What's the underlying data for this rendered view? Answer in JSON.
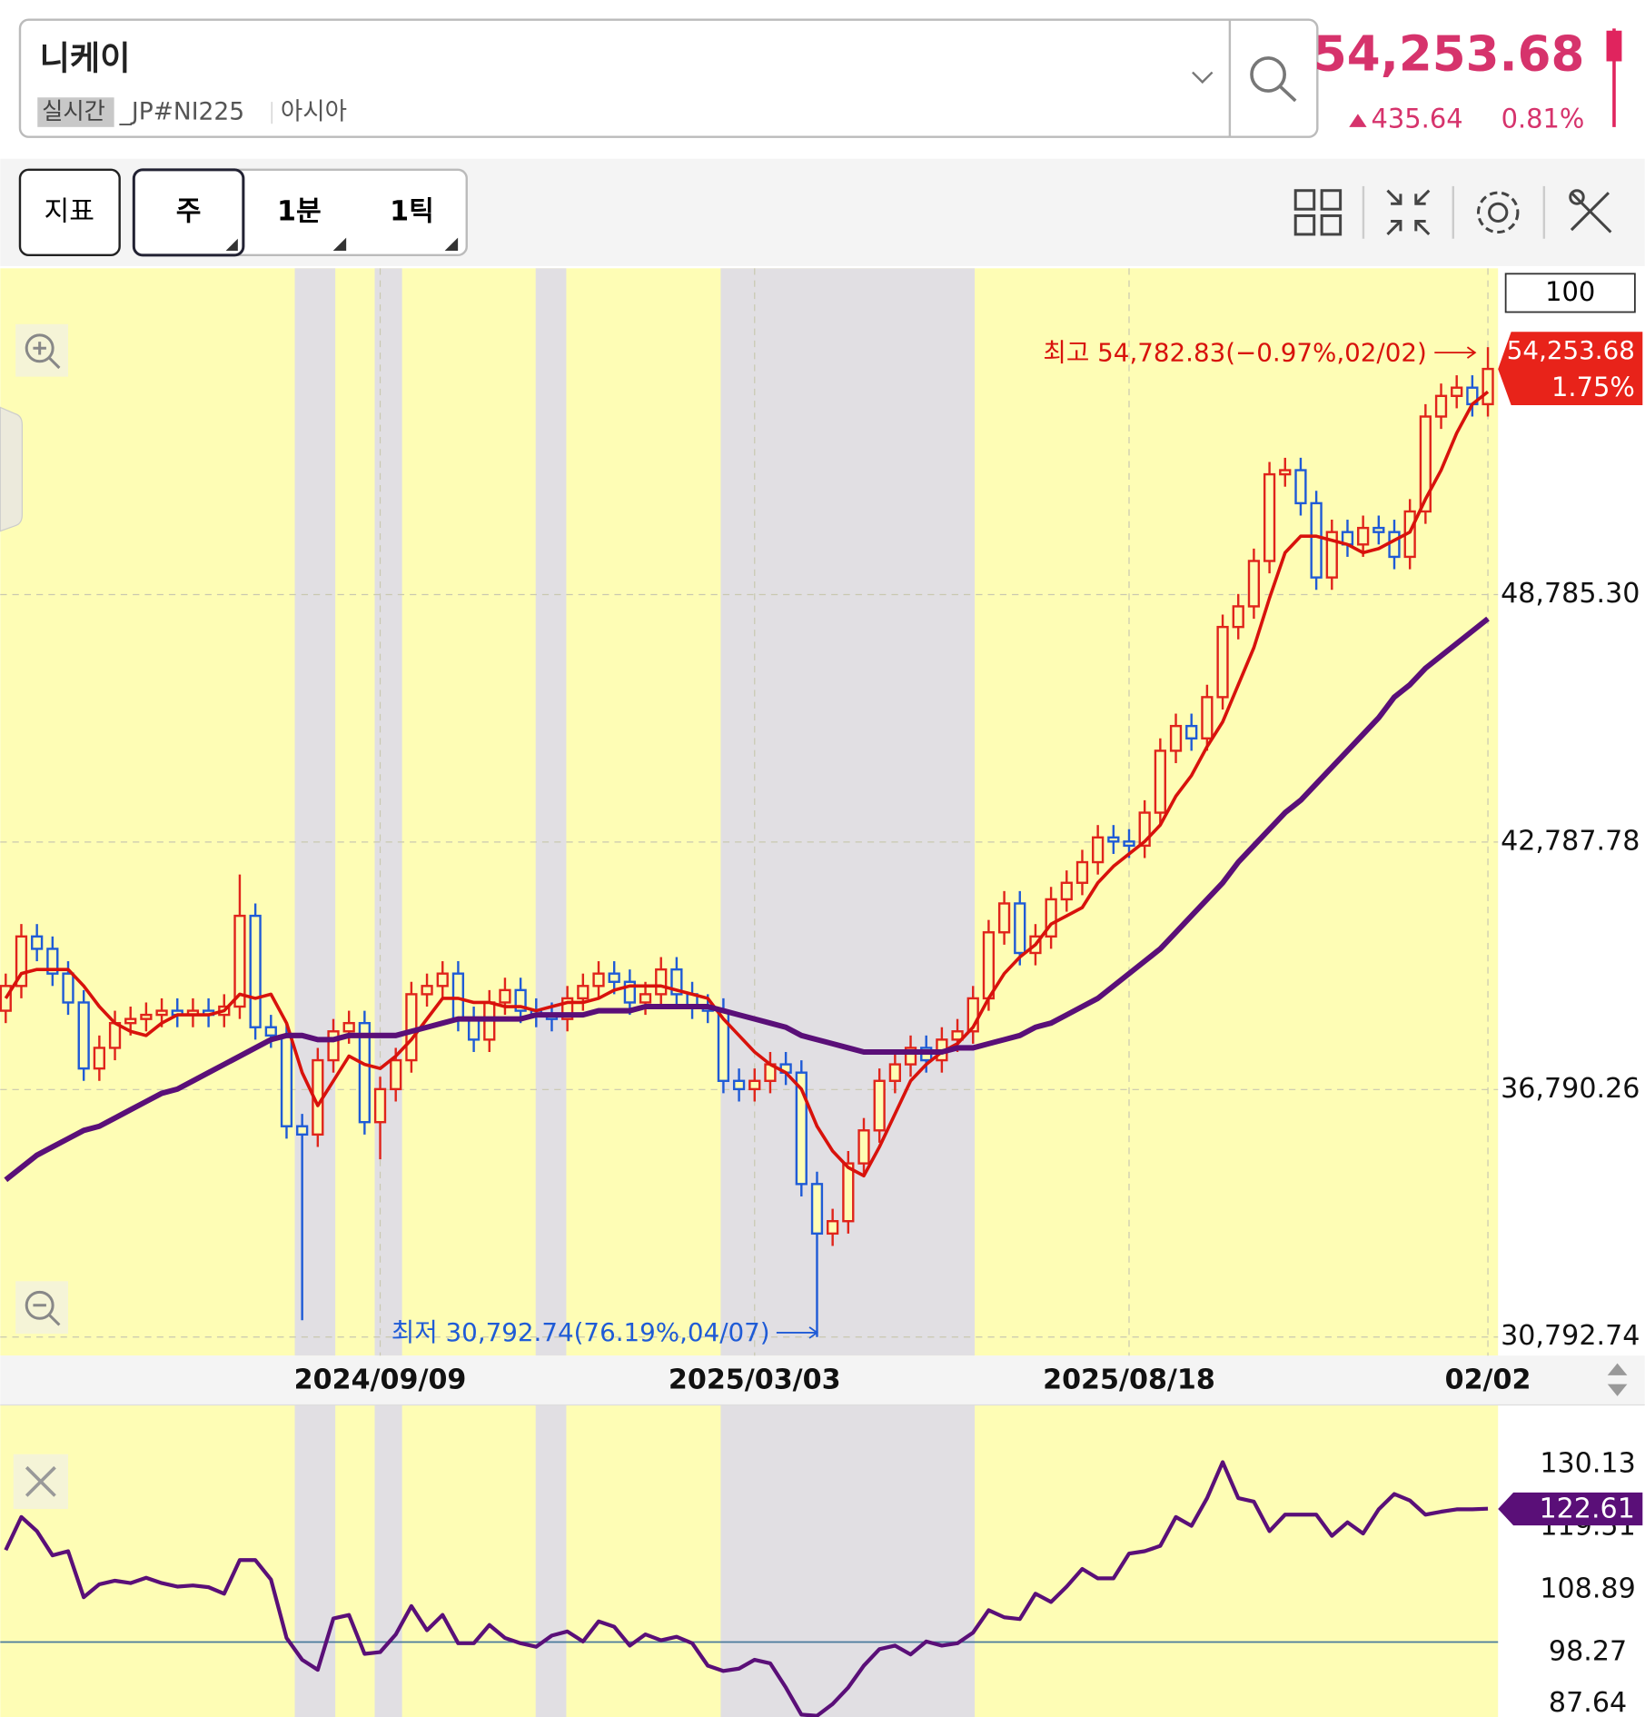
{
  "header": {
    "name": "니케이",
    "badge": "실시간",
    "code": "_JP#NI225",
    "region": "아시아",
    "price": "54,253.68",
    "change": "435.64",
    "change_pct": "0.81%"
  },
  "toolbar": {
    "buttons": [
      "지표",
      "주",
      "1분",
      "1틱"
    ]
  },
  "chart_data": [
    {
      "type": "candlestick",
      "up_color": "#e0241b",
      "down_color": "#1f5bd6",
      "categories": [
        null,
        null,
        null,
        null,
        null,
        null,
        null,
        null,
        null,
        null,
        null,
        null,
        null,
        null,
        null,
        null,
        null,
        null,
        null,
        null,
        null,
        null,
        null,
        null,
        "2024/09/09",
        null,
        null,
        null,
        null,
        null,
        null,
        null,
        null,
        null,
        null,
        null,
        null,
        null,
        null,
        null,
        null,
        null,
        null,
        null,
        null,
        null,
        null,
        null,
        "2025/03/03",
        null,
        null,
        null,
        null,
        null,
        null,
        null,
        null,
        null,
        null,
        null,
        null,
        null,
        null,
        null,
        null,
        null,
        null,
        null,
        null,
        null,
        null,
        null,
        "2025/08/18",
        null,
        null,
        null,
        null,
        null,
        null,
        null,
        null,
        null,
        null,
        null,
        null,
        null,
        null,
        null,
        null,
        null,
        null,
        null,
        null,
        null,
        null,
        "02/02"
      ],
      "open": [
        38700,
        39300,
        40500,
        40200,
        39600,
        38900,
        37300,
        37800,
        38400,
        38500,
        38600,
        38700,
        38600,
        38700,
        38600,
        38800,
        41000,
        38300,
        38100,
        35900,
        35700,
        37500,
        38200,
        38400,
        36000,
        36800,
        37500,
        39100,
        39300,
        39600,
        38500,
        38000,
        38900,
        39200,
        38700,
        38600,
        38500,
        39000,
        39300,
        39600,
        39400,
        38900,
        39100,
        39700,
        39100,
        38800,
        38700,
        37000,
        36800,
        37000,
        37400,
        37200,
        34500,
        33300,
        33600,
        35000,
        35800,
        37000,
        37400,
        37800,
        37500,
        38000,
        38200,
        39000,
        40600,
        41300,
        40100,
        40500,
        41400,
        41800,
        42300,
        42900,
        42800,
        42700,
        43500,
        45000,
        45600,
        45300,
        46300,
        48000,
        48500,
        49600,
        51700,
        51800,
        51000,
        49200,
        50300,
        50000,
        50400,
        50300,
        49700,
        50800,
        53100,
        53600,
        53800,
        53400
      ],
      "high": [
        39600,
        40800,
        40800,
        40500,
        39900,
        39200,
        38100,
        38700,
        38800,
        38900,
        39000,
        39000,
        39000,
        39000,
        39100,
        42000,
        41300,
        38600,
        38400,
        36200,
        37800,
        38500,
        38700,
        38700,
        37100,
        37800,
        39400,
        39600,
        39900,
        39900,
        38800,
        39200,
        39500,
        39500,
        39000,
        38900,
        39300,
        39600,
        39900,
        39900,
        39700,
        39400,
        40000,
        40000,
        39400,
        39100,
        39000,
        37300,
        37300,
        37700,
        37700,
        37500,
        34800,
        33900,
        35300,
        36100,
        37300,
        37700,
        38100,
        38100,
        38300,
        38500,
        39300,
        40900,
        41600,
        41600,
        40800,
        41700,
        42100,
        42600,
        43200,
        43200,
        43100,
        43800,
        45300,
        45900,
        45900,
        46600,
        48300,
        48800,
        49900,
        52000,
        52100,
        52100,
        51300,
        50600,
        50600,
        50700,
        50700,
        50600,
        51100,
        53400,
        53900,
        54100,
        54100,
        54782.83
      ],
      "low": [
        38400,
        39000,
        39900,
        39300,
        38600,
        37000,
        37000,
        37500,
        38100,
        38200,
        38300,
        38300,
        38300,
        38300,
        38300,
        38500,
        38000,
        37800,
        35600,
        31200,
        35400,
        37200,
        37900,
        35700,
        35100,
        36500,
        37200,
        38800,
        39000,
        38200,
        37700,
        37700,
        38600,
        38400,
        38300,
        38200,
        38200,
        38700,
        39000,
        39100,
        38600,
        38600,
        38800,
        38800,
        38500,
        38400,
        36700,
        36500,
        36500,
        36700,
        36900,
        34200,
        30792.74,
        33000,
        33300,
        34700,
        35500,
        36700,
        37100,
        37200,
        37200,
        37700,
        37900,
        38700,
        40300,
        39800,
        39800,
        40200,
        41100,
        41500,
        42000,
        42500,
        42400,
        42400,
        43200,
        44700,
        45000,
        45000,
        46000,
        47700,
        48200,
        49300,
        51400,
        50700,
        48900,
        48900,
        49700,
        49700,
        50000,
        49400,
        49400,
        50500,
        52800,
        53300,
        53100,
        53100
      ],
      "close": [
        39300,
        40500,
        40200,
        39600,
        38900,
        37300,
        37800,
        38400,
        38500,
        38600,
        38700,
        38600,
        38700,
        38600,
        38800,
        41000,
        38300,
        38100,
        35900,
        35700,
        37500,
        38200,
        38400,
        36000,
        36800,
        37500,
        39100,
        39300,
        39600,
        38500,
        38000,
        38900,
        39200,
        38700,
        38600,
        38500,
        39000,
        39300,
        39600,
        39400,
        38900,
        39100,
        39700,
        39100,
        38800,
        38700,
        37000,
        36800,
        37000,
        37400,
        37200,
        34500,
        33300,
        33600,
        35000,
        35800,
        37000,
        37400,
        37800,
        37500,
        38000,
        38200,
        39000,
        40600,
        41300,
        40100,
        40500,
        41400,
        41800,
        42300,
        42900,
        42800,
        42700,
        43500,
        45000,
        45600,
        45300,
        46300,
        48000,
        48500,
        49600,
        51700,
        51800,
        51000,
        49200,
        50300,
        50000,
        50400,
        50300,
        49700,
        50800,
        53100,
        53600,
        53800,
        53400,
        54253.68
      ],
      "series": [
        {
          "color": "#d8120c",
          "values": [
            39000,
            39600,
            39700,
            39700,
            39700,
            39300,
            38800,
            38400,
            38200,
            38100,
            38400,
            38600,
            38600,
            38600,
            38700,
            39100,
            39000,
            39100,
            38400,
            37200,
            36400,
            37000,
            37600,
            37400,
            37300,
            37600,
            38000,
            38500,
            39000,
            39000,
            38900,
            38900,
            38800,
            38800,
            38700,
            38800,
            38900,
            38900,
            39000,
            39200,
            39300,
            39300,
            39300,
            39200,
            39100,
            39000,
            38500,
            38100,
            37700,
            37400,
            37200,
            36800,
            35900,
            35300,
            34900,
            34700,
            35400,
            36200,
            37000,
            37400,
            37700,
            37900,
            38300,
            39000,
            39600,
            40000,
            40300,
            40800,
            41000,
            41200,
            41800,
            42200,
            42500,
            42800,
            43200,
            43900,
            44400,
            45100,
            45700,
            46600,
            47500,
            48700,
            49800,
            50200,
            50200,
            50100,
            50000,
            49800,
            49900,
            50100,
            50300,
            51100,
            51800,
            52700,
            53400,
            53700
          ]
        },
        {
          "color": "#5a0f78",
          "values": [
            34600,
            34900,
            35200,
            35400,
            35600,
            35800,
            35900,
            36100,
            36300,
            36500,
            36700,
            36800,
            37000,
            37200,
            37400,
            37600,
            37800,
            38000,
            38100,
            38100,
            38000,
            38000,
            38100,
            38100,
            38100,
            38100,
            38200,
            38300,
            38400,
            38500,
            38500,
            38500,
            38500,
            38500,
            38600,
            38600,
            38600,
            38600,
            38700,
            38700,
            38700,
            38800,
            38800,
            38800,
            38800,
            38800,
            38700,
            38600,
            38500,
            38400,
            38300,
            38100,
            38000,
            37900,
            37800,
            37700,
            37700,
            37700,
            37700,
            37700,
            37700,
            37800,
            37800,
            37900,
            38000,
            38100,
            38300,
            38400,
            38600,
            38800,
            39000,
            39300,
            39600,
            39900,
            40200,
            40600,
            41000,
            41400,
            41800,
            42300,
            42700,
            43100,
            43500,
            43800,
            44200,
            44600,
            45000,
            45400,
            45800,
            46300,
            46600,
            47000,
            47300,
            47600,
            47900,
            48200
          ]
        }
      ],
      "ylim": [
        30341,
        56693
      ],
      "yticks": [
        {
          "value": 30792.74,
          "label": "30,792.74"
        },
        {
          "value": 36790.26,
          "label": "36,790.26"
        },
        {
          "value": 42787.78,
          "label": "42,787.78"
        },
        {
          "value": 48785.3,
          "label": "48,785.30"
        }
      ],
      "high_label": "최고 54,782.83(−0.97%,02/02)",
      "low_label": "최저 30,792.74(76.19%,04/07)",
      "last_label": "54,253.68",
      "last_pct": "1.75%",
      "scale_box": "100"
    },
    {
      "type": "line",
      "series": [
        {
          "color": "#5a0f78",
          "values": [
            115.6,
            121.2,
            118.8,
            114.7,
            115.4,
            107.6,
            109.8,
            110.4,
            110,
            110.9,
            110,
            109.4,
            109.6,
            109.3,
            108.2,
            113.9,
            113.9,
            110.6,
            100.7,
            97,
            95.3,
            104,
            104.6,
            98,
            98.3,
            101.3,
            106.1,
            102,
            104.6,
            99.8,
            99.8,
            102.9,
            100.7,
            99.8,
            99.2,
            101.1,
            101.8,
            100.1,
            103.5,
            102.6,
            99.4,
            101.3,
            100.3,
            100.9,
            99.8,
            96,
            95.1,
            95.5,
            97,
            96.4,
            92.3,
            87.7,
            87.5,
            89.5,
            92.3,
            96,
            98.8,
            99.4,
            97.9,
            100.1,
            99.4,
            99.8,
            101.6,
            105.4,
            104.2,
            103.9,
            108.2,
            106.8,
            109.4,
            112.4,
            110.8,
            110.8,
            115,
            115.4,
            116.3,
            121.2,
            119.7,
            124.4,
            130.5,
            124.4,
            123.8,
            118.8,
            121.6,
            121.6,
            121.6,
            118,
            120.3,
            118.4,
            122.5,
            125.1,
            124,
            121.6,
            122.1,
            122.5,
            122.5,
            122.61
          ]
        }
      ],
      "ylim": [
        87.3,
        140.2
      ],
      "yticks": [
        87.64,
        98.27,
        108.89,
        119.51,
        130.13
      ],
      "reference_line": 100,
      "last_label": "122.61"
    }
  ]
}
